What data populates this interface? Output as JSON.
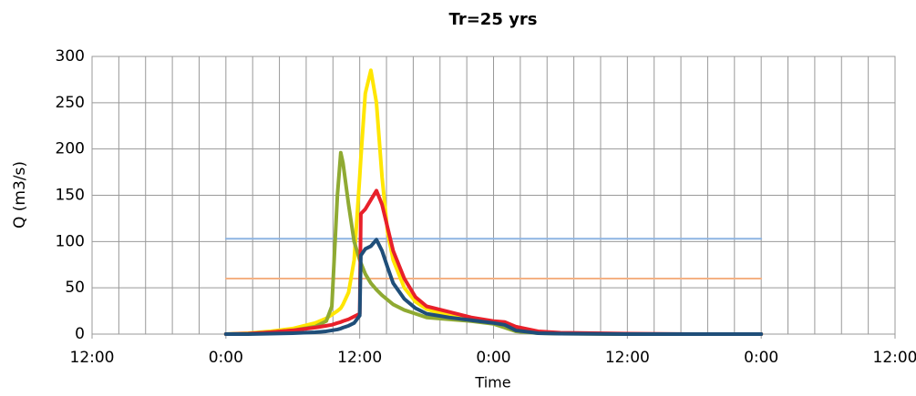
{
  "chart_data": {
    "type": "line",
    "title": "Tr=25 yrs",
    "xlabel": "Time",
    "ylabel": "Q (m3/s)",
    "xlim": [
      -12,
      60
    ],
    "xticks": [
      {
        "value": -12,
        "label": "12:00"
      },
      {
        "value": 0,
        "label": "0:00"
      },
      {
        "value": 12,
        "label": "12:00"
      },
      {
        "value": 24,
        "label": "0:00"
      },
      {
        "value": 36,
        "label": "12:00"
      },
      {
        "value": 48,
        "label": "0:00"
      },
      {
        "value": 60,
        "label": "12:00"
      }
    ],
    "xgrid": [
      -12,
      -9.6,
      -7.2,
      -4.8,
      -2.4,
      0,
      2.4,
      4.8,
      7.2,
      9.6,
      12,
      14.4,
      16.8,
      19.2,
      21.6,
      24,
      26.4,
      28.8,
      31.2,
      33.6,
      36,
      38.4,
      40.8,
      43.2,
      45.6,
      48,
      50.4,
      52.8,
      55.2,
      57.6,
      60
    ],
    "ylim": [
      0,
      300
    ],
    "yticks": [
      0,
      50,
      100,
      150,
      200,
      250,
      300
    ],
    "grid": true,
    "x": [
      0,
      2,
      4,
      6,
      8,
      9,
      9.5,
      10,
      10.3,
      10.5,
      11,
      11.5,
      12,
      12.1,
      12.5,
      13,
      13.5,
      14,
      14.5,
      15,
      16,
      17,
      18,
      20,
      22,
      24,
      25,
      26,
      28,
      30,
      36,
      42,
      48
    ],
    "series": [
      {
        "color": "#8db4e2",
        "width": 2,
        "values": [
          103,
          103,
          103,
          103,
          103,
          103,
          103,
          103,
          103,
          103,
          103,
          103,
          103,
          103,
          103,
          103,
          103,
          103,
          103,
          103,
          103,
          103,
          103,
          103,
          103,
          103,
          103,
          103,
          103,
          103,
          103,
          103,
          103
        ]
      },
      {
        "color": "#f4b183",
        "width": 2,
        "values": [
          60,
          60,
          60,
          60,
          60,
          60,
          60,
          60,
          60,
          60,
          60,
          60,
          60,
          60,
          60,
          60,
          60,
          60,
          60,
          60,
          60,
          60,
          60,
          60,
          60,
          60,
          60,
          60,
          60,
          60,
          60,
          60,
          60
        ]
      },
      {
        "color": "#ffe600",
        "width": 4,
        "values": [
          0,
          1,
          3,
          6,
          12,
          17,
          21,
          25,
          28,
          32,
          45,
          80,
          170,
          190,
          260,
          285,
          250,
          170,
          110,
          80,
          50,
          35,
          27,
          20,
          16,
          12,
          8,
          4,
          2,
          1,
          0,
          0,
          0
        ]
      },
      {
        "color": "#8faa32",
        "width": 4,
        "values": [
          0,
          0.5,
          2,
          4,
          8,
          14,
          30,
          150,
          196,
          185,
          140,
          100,
          80,
          77,
          65,
          55,
          48,
          42,
          37,
          32,
          26,
          22,
          18,
          16,
          14,
          11,
          7,
          3,
          1,
          0.5,
          0,
          0,
          0
        ]
      },
      {
        "color": "#e8202a",
        "width": 4,
        "values": [
          0,
          0.5,
          2,
          4,
          7,
          9,
          10,
          12,
          13,
          14,
          16,
          19,
          22,
          130,
          135,
          145,
          155,
          140,
          115,
          90,
          60,
          40,
          30,
          24,
          18,
          14,
          13,
          8,
          3,
          1.5,
          0.5,
          0,
          0
        ]
      },
      {
        "color": "#1f4e79",
        "width": 4,
        "values": [
          0,
          0,
          0.5,
          1,
          2,
          3,
          4,
          5,
          6,
          7,
          9,
          12,
          20,
          85,
          92,
          95,
          102,
          90,
          72,
          55,
          38,
          28,
          22,
          18,
          15,
          12,
          10,
          4,
          1,
          0.5,
          0,
          0,
          0
        ]
      }
    ]
  }
}
